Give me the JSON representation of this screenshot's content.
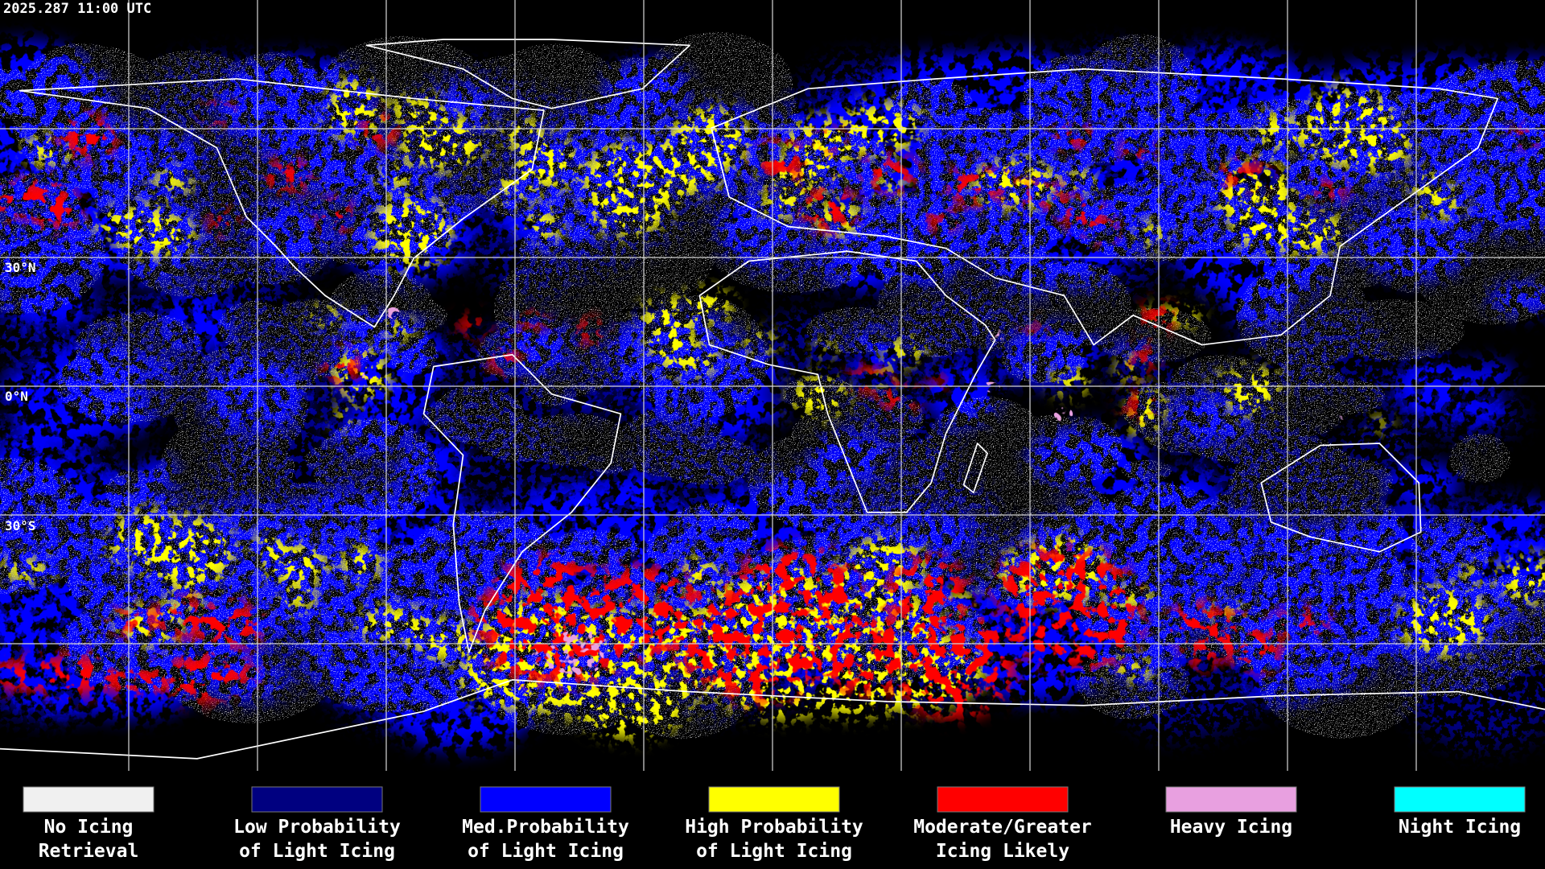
{
  "timestamp": "2025.287 11:00 UTC",
  "grid_labels": [
    "30°N",
    "0°N",
    "30°S"
  ],
  "legend": [
    {
      "label": [
        "No Icing",
        "Retrieval"
      ],
      "color": "#f0f0f0"
    },
    {
      "label": [
        "Low Probability",
        "of Light Icing"
      ],
      "color": "#000080"
    },
    {
      "label": [
        "Med.Probability",
        "of Light Icing"
      ],
      "color": "#0000ff"
    },
    {
      "label": [
        "High Probability",
        "of Light Icing"
      ],
      "color": "#ffff00"
    },
    {
      "label": [
        "Moderate/Greater",
        "Icing Likely"
      ],
      "color": "#ff0000"
    },
    {
      "label": [
        "Heavy Icing"
      ],
      "color": "#e8a0e0"
    },
    {
      "label": [
        "Night Icing"
      ],
      "color": "#00ffff"
    }
  ]
}
